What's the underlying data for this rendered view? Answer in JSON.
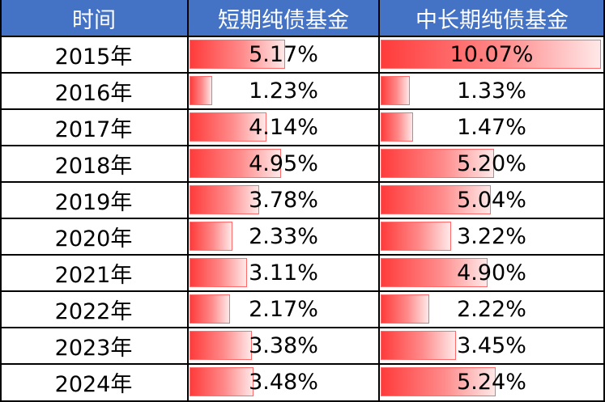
{
  "colors": {
    "header_bg": "#4472c4",
    "bar": "#ff4d4d"
  },
  "chart_data": {
    "type": "table",
    "columns": [
      "时间",
      "短期纯债基金",
      "中长期纯债基金"
    ],
    "rows": [
      {
        "year": "2015年",
        "short": 5.17,
        "mid": 10.07,
        "short_label": "5.17%",
        "mid_label": "10.07%"
      },
      {
        "year": "2016年",
        "short": 1.23,
        "mid": 1.33,
        "short_label": "1.23%",
        "mid_label": "1.33%"
      },
      {
        "year": "2017年",
        "short": 4.14,
        "mid": 1.47,
        "short_label": "4.14%",
        "mid_label": "1.47%"
      },
      {
        "year": "2018年",
        "short": 4.95,
        "mid": 5.2,
        "short_label": "4.95%",
        "mid_label": "5.20%"
      },
      {
        "year": "2019年",
        "short": 3.78,
        "mid": 5.04,
        "short_label": "3.78%",
        "mid_label": "5.04%"
      },
      {
        "year": "2020年",
        "short": 2.33,
        "mid": 3.22,
        "short_label": "2.33%",
        "mid_label": "3.22%"
      },
      {
        "year": "2021年",
        "short": 3.11,
        "mid": 4.9,
        "short_label": "3.11%",
        "mid_label": "4.90%"
      },
      {
        "year": "2022年",
        "short": 2.17,
        "mid": 2.22,
        "short_label": "2.17%",
        "mid_label": "2.22%"
      },
      {
        "year": "2023年",
        "short": 3.38,
        "mid": 3.45,
        "short_label": "3.38%",
        "mid_label": "3.45%"
      },
      {
        "year": "2024年",
        "short": 3.48,
        "mid": 5.24,
        "short_label": "3.48%",
        "mid_label": "5.24%"
      }
    ],
    "bar_max": 10.07
  }
}
